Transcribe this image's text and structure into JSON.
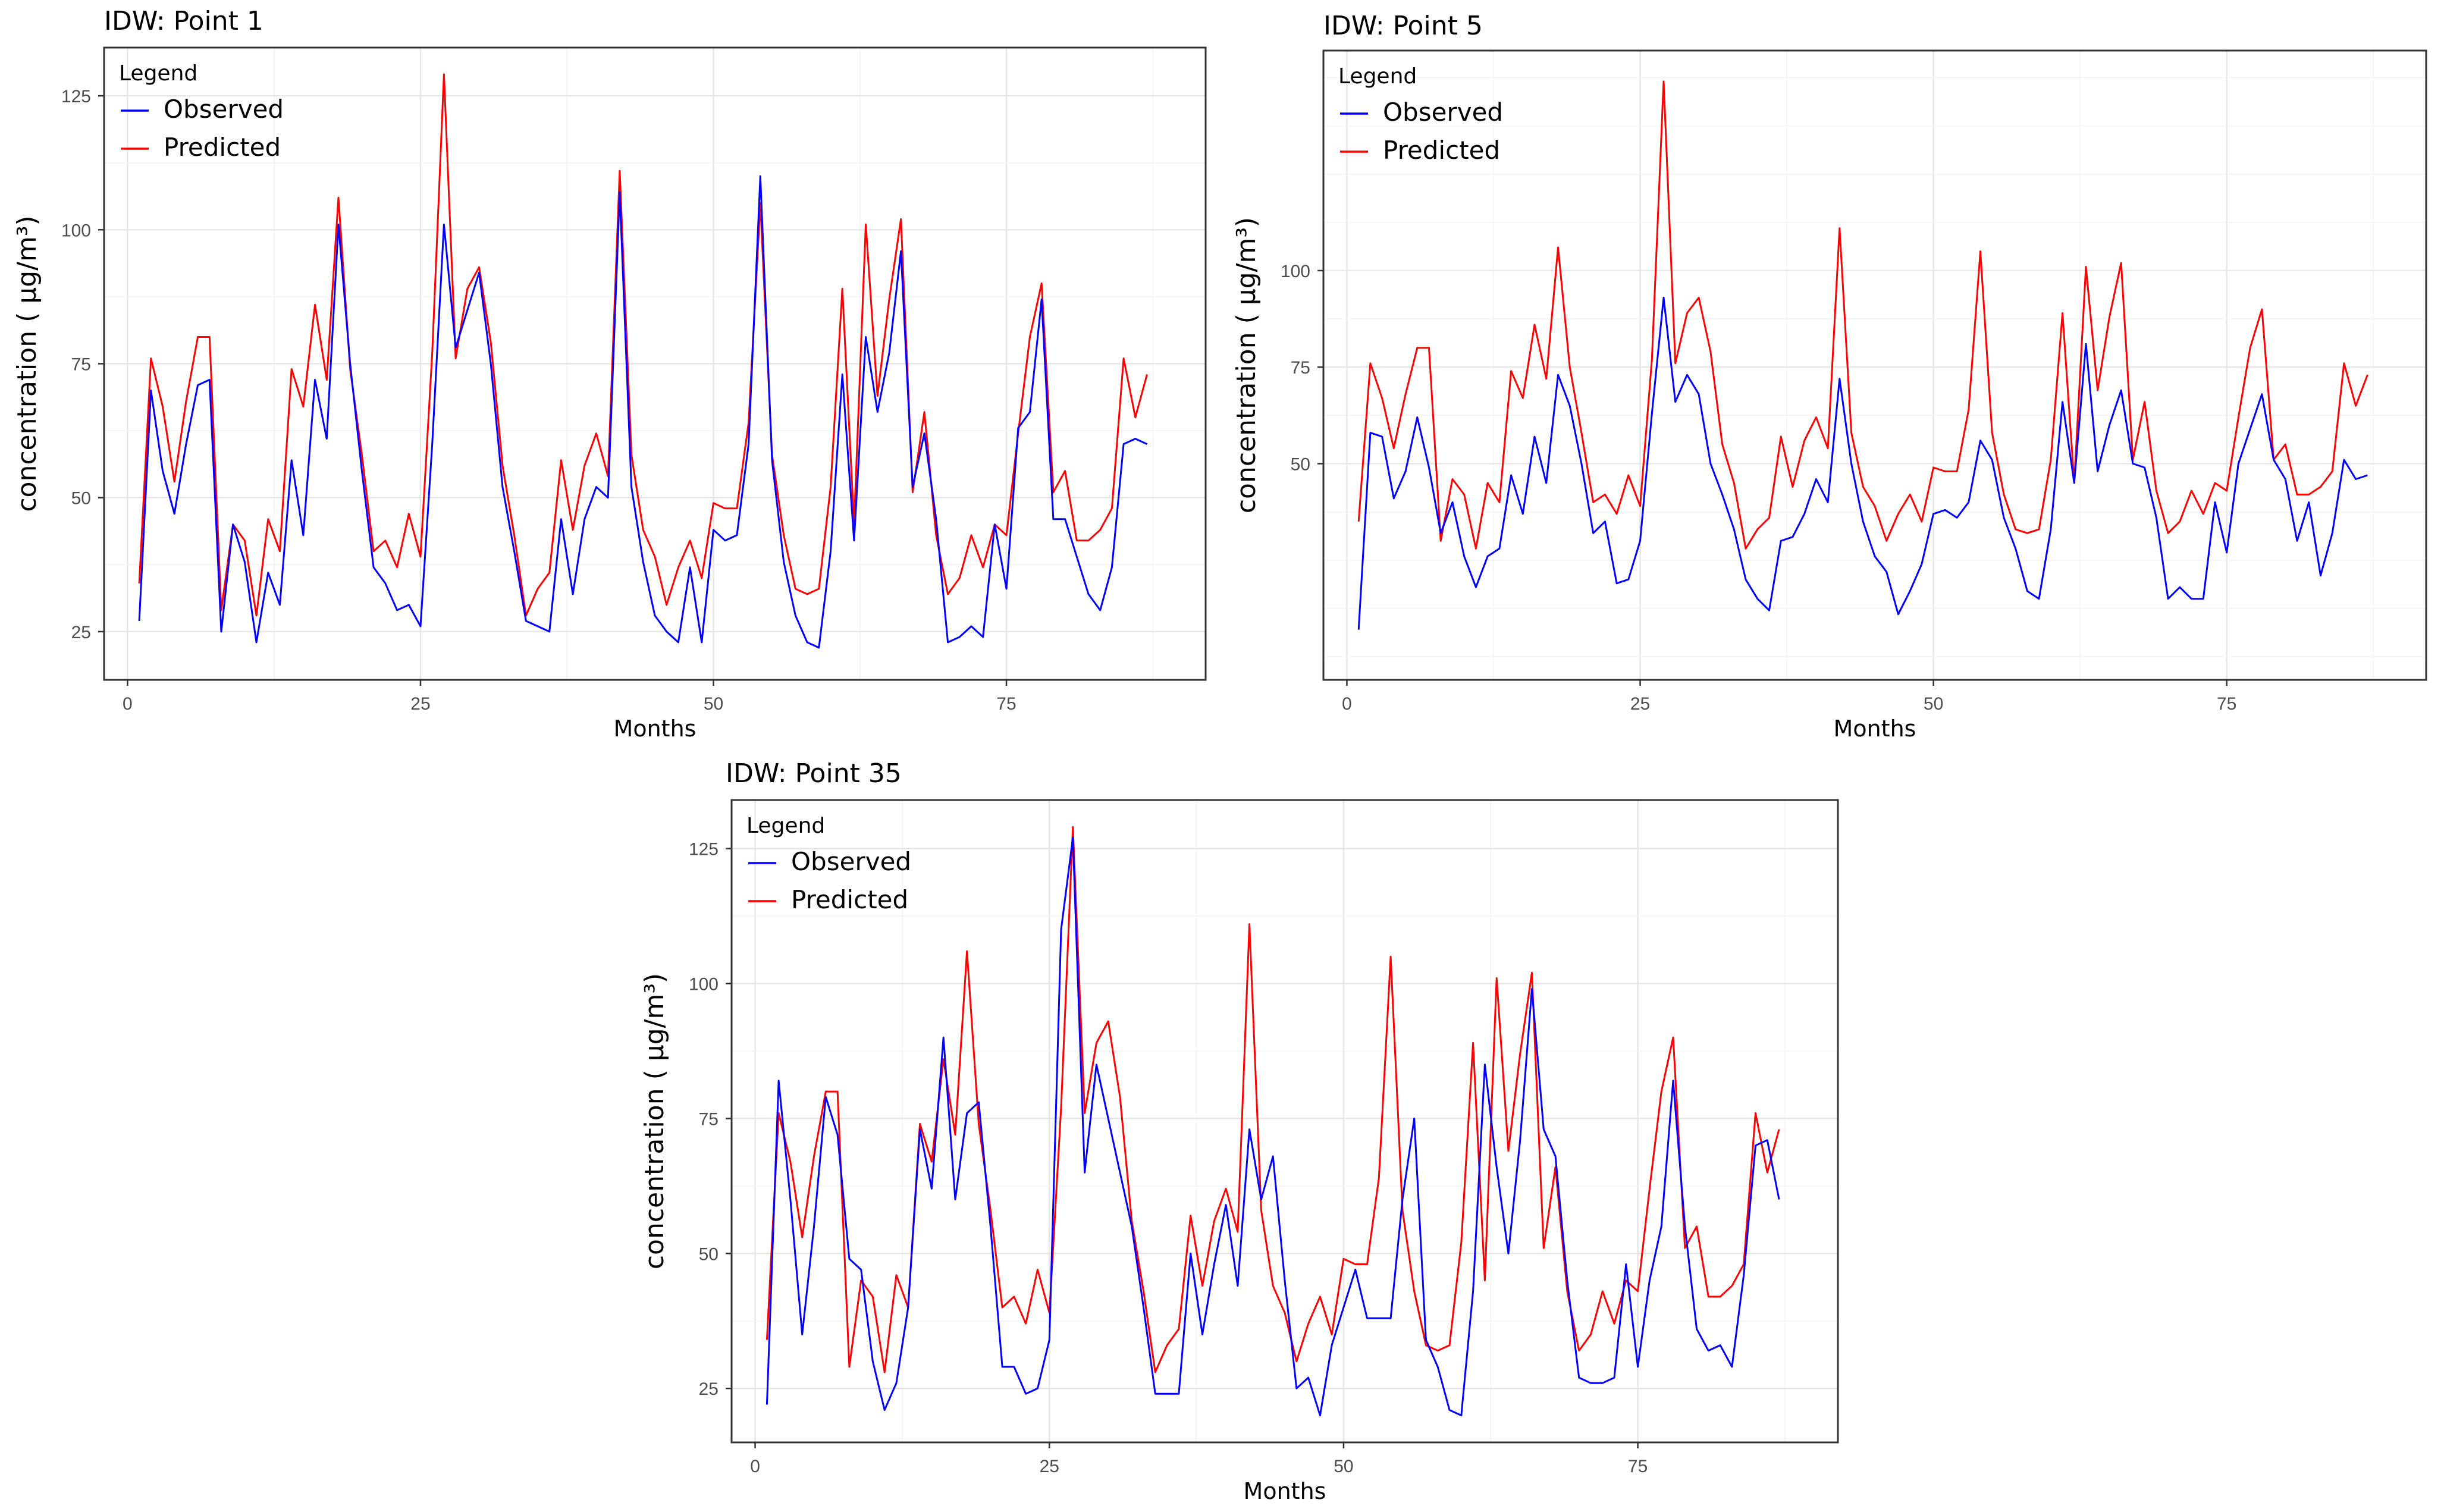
{
  "chart_data": [
    {
      "type": "line",
      "title": "IDW: Point 1",
      "xlabel": "Months",
      "ylabel": "concentration ( µg/m³)",
      "xlim": [
        -2,
        92
      ],
      "ylim": [
        16,
        134
      ],
      "xticks": [
        0,
        25,
        50,
        75
      ],
      "yticks": [
        25,
        50,
        75,
        100,
        125
      ],
      "grid": true,
      "legend": {
        "title": "Legend",
        "position": "top-left"
      },
      "series": [
        {
          "name": "Observed",
          "color": "#0000ff",
          "x": [
            1,
            2,
            3,
            4,
            5,
            6,
            7,
            8,
            9,
            10,
            11,
            12,
            13,
            14,
            15,
            16,
            17,
            18,
            19,
            20,
            21,
            22,
            23,
            24,
            25,
            26,
            27,
            28,
            29,
            30,
            31,
            32,
            33,
            34,
            35,
            36,
            37,
            38,
            39,
            40,
            41,
            42,
            43,
            44,
            45,
            46,
            47,
            48,
            49,
            50,
            51,
            52,
            53,
            54,
            55,
            56,
            57,
            58,
            59,
            60,
            61,
            62,
            63,
            64,
            65,
            66,
            67,
            68,
            69,
            70,
            71,
            72,
            73,
            74,
            75,
            76,
            77,
            78,
            79,
            80,
            81,
            82,
            83,
            84,
            85,
            86,
            87,
            88
          ],
          "y": [
            27,
            70,
            55,
            47,
            60,
            71,
            72,
            25,
            45,
            38,
            23,
            36,
            30,
            57,
            43,
            72,
            61,
            101,
            75,
            55,
            37,
            34,
            29,
            30,
            26,
            60,
            101,
            78,
            85,
            92,
            75,
            52,
            40,
            27,
            26,
            25,
            46,
            32,
            46,
            52,
            50,
            107,
            52,
            38,
            28,
            25,
            23,
            37,
            23,
            44,
            42,
            43,
            60,
            110,
            57,
            38,
            28,
            23,
            22,
            40,
            73,
            42,
            80,
            66,
            77,
            96,
            52,
            62,
            46,
            23,
            24,
            26,
            24,
            45,
            33,
            63,
            66,
            87,
            46,
            46,
            39,
            32,
            29,
            37,
            60,
            61,
            60,
            null
          ]
        },
        {
          "name": "Predicted",
          "color": "#ff0000",
          "x": [
            1,
            2,
            3,
            4,
            5,
            6,
            7,
            8,
            9,
            10,
            11,
            12,
            13,
            14,
            15,
            16,
            17,
            18,
            19,
            20,
            21,
            22,
            23,
            24,
            25,
            26,
            27,
            28,
            29,
            30,
            31,
            32,
            33,
            34,
            35,
            36,
            37,
            38,
            39,
            40,
            41,
            42,
            43,
            44,
            45,
            46,
            47,
            48,
            49,
            50,
            51,
            52,
            53,
            54,
            55,
            56,
            57,
            58,
            59,
            60,
            61,
            62,
            63,
            64,
            65,
            66,
            67,
            68,
            69,
            70,
            71,
            72,
            73,
            74,
            75,
            76,
            77,
            78,
            79,
            80,
            81,
            82,
            83,
            84,
            85,
            86,
            87,
            88
          ],
          "y": [
            34,
            76,
            67,
            53,
            68,
            80,
            80,
            29,
            45,
            42,
            28,
            46,
            40,
            74,
            67,
            86,
            72,
            106,
            74,
            58,
            40,
            42,
            37,
            47,
            39,
            77,
            129,
            76,
            89,
            93,
            79,
            56,
            43,
            28,
            33,
            36,
            57,
            44,
            56,
            62,
            54,
            111,
            58,
            44,
            39,
            30,
            37,
            42,
            35,
            49,
            48,
            48,
            64,
            105,
            58,
            43,
            33,
            32,
            33,
            52,
            89,
            45,
            101,
            69,
            87,
            102,
            51,
            66,
            43,
            32,
            35,
            43,
            37,
            45,
            43,
            62,
            80,
            90,
            51,
            55,
            42,
            42,
            44,
            48,
            76,
            65,
            73,
            null
          ]
        }
      ]
    },
    {
      "type": "line",
      "title": "IDW: Point 5",
      "xlabel": "Months",
      "ylabel": "concentration ( µg/m³)",
      "xlim": [
        -2,
        92
      ],
      "ylim": [
        -6,
        157
      ],
      "xticks": [
        0,
        25,
        50,
        75
      ],
      "yticks": [
        50,
        75,
        100
      ],
      "grid": true,
      "legend": {
        "title": "Legend",
        "position": "top-left"
      },
      "series": [
        {
          "name": "Observed",
          "color": "#0000ff",
          "x": [
            1,
            2,
            3,
            4,
            5,
            6,
            7,
            8,
            9,
            10,
            11,
            12,
            13,
            14,
            15,
            16,
            17,
            18,
            19,
            20,
            21,
            22,
            23,
            24,
            25,
            26,
            27,
            28,
            29,
            30,
            31,
            32,
            33,
            34,
            35,
            36,
            37,
            38,
            39,
            40,
            41,
            42,
            43,
            44,
            45,
            46,
            47,
            48,
            49,
            50,
            51,
            52,
            53,
            54,
            55,
            56,
            57,
            58,
            59,
            60,
            61,
            62,
            63,
            64,
            65,
            66,
            67,
            68,
            69,
            70,
            71,
            72,
            73,
            74,
            75,
            76,
            77,
            78,
            79,
            80,
            81,
            82,
            83,
            84,
            85,
            86,
            87,
            88
          ],
          "y": [
            7,
            58,
            57,
            41,
            48,
            62,
            49,
            32,
            40,
            26,
            18,
            26,
            28,
            47,
            37,
            57,
            45,
            73,
            65,
            50,
            32,
            35,
            19,
            20,
            30,
            63,
            93,
            66,
            73,
            68,
            50,
            42,
            33,
            20,
            15,
            12,
            30,
            31,
            37,
            46,
            40,
            72,
            50,
            35,
            26,
            22,
            11,
            17,
            24,
            37,
            38,
            36,
            40,
            56,
            51,
            36,
            28,
            17,
            15,
            33,
            66,
            45,
            81,
            48,
            60,
            69,
            50,
            49,
            36,
            15,
            18,
            15,
            15,
            40,
            27,
            50,
            59,
            68,
            51,
            46,
            30,
            40,
            21,
            32,
            51,
            46,
            47,
            null
          ]
        },
        {
          "name": "Predicted",
          "color": "#ff0000",
          "x": [
            1,
            2,
            3,
            4,
            5,
            6,
            7,
            8,
            9,
            10,
            11,
            12,
            13,
            14,
            15,
            16,
            17,
            18,
            19,
            20,
            21,
            22,
            23,
            24,
            25,
            26,
            27,
            28,
            29,
            30,
            31,
            32,
            33,
            34,
            35,
            36,
            37,
            38,
            39,
            40,
            41,
            42,
            43,
            44,
            45,
            46,
            47,
            48,
            49,
            50,
            51,
            52,
            53,
            54,
            55,
            56,
            57,
            58,
            59,
            60,
            61,
            62,
            63,
            64,
            65,
            66,
            67,
            68,
            69,
            70,
            71,
            72,
            73,
            74,
            75,
            76,
            77,
            78,
            79,
            80,
            81,
            82,
            83,
            84,
            85,
            86,
            87,
            88
          ],
          "y": [
            35,
            76,
            67,
            54,
            68,
            80,
            80,
            30,
            46,
            42,
            28,
            45,
            40,
            74,
            67,
            86,
            72,
            106,
            75,
            58,
            40,
            42,
            37,
            47,
            39,
            77,
            149,
            76,
            89,
            93,
            79,
            55,
            45,
            28,
            33,
            36,
            57,
            44,
            56,
            62,
            54,
            111,
            58,
            44,
            39,
            30,
            37,
            42,
            35,
            49,
            48,
            48,
            64,
            105,
            58,
            42,
            33,
            32,
            33,
            51,
            89,
            45,
            101,
            69,
            88,
            102,
            51,
            66,
            43,
            32,
            35,
            43,
            37,
            45,
            43,
            62,
            80,
            90,
            51,
            55,
            42,
            42,
            44,
            48,
            76,
            65,
            73,
            null
          ]
        }
      ]
    },
    {
      "type": "line",
      "title": "IDW: Point 35",
      "xlabel": "Months",
      "ylabel": "concentration ( µg/m³)",
      "xlim": [
        -2,
        92
      ],
      "ylim": [
        15,
        134
      ],
      "xticks": [
        0,
        25,
        50,
        75
      ],
      "yticks": [
        25,
        50,
        75,
        100,
        125
      ],
      "grid": true,
      "legend": {
        "title": "Legend",
        "position": "top-left"
      },
      "series": [
        {
          "name": "Observed",
          "color": "#0000ff",
          "x": [
            1,
            2,
            3,
            4,
            5,
            6,
            7,
            8,
            9,
            10,
            11,
            12,
            13,
            14,
            15,
            16,
            17,
            18,
            19,
            20,
            21,
            22,
            23,
            24,
            25,
            26,
            27,
            28,
            29,
            30,
            31,
            32,
            33,
            34,
            35,
            36,
            37,
            38,
            39,
            40,
            41,
            42,
            43,
            44,
            45,
            46,
            47,
            48,
            49,
            50,
            51,
            52,
            53,
            54,
            55,
            56,
            57,
            58,
            59,
            60,
            61,
            62,
            63,
            64,
            65,
            66,
            67,
            68,
            69,
            70,
            71,
            72,
            73,
            74,
            75,
            76,
            77,
            78,
            79,
            80,
            81,
            82,
            83,
            84,
            85,
            86,
            87,
            88
          ],
          "y": [
            22,
            82,
            60,
            35,
            55,
            79,
            72,
            49,
            47,
            30,
            21,
            26,
            40,
            73,
            62,
            90,
            60,
            76,
            78,
            55,
            29,
            29,
            24,
            25,
            34,
            110,
            127,
            65,
            85,
            75,
            65,
            55,
            40,
            24,
            24,
            24,
            50,
            35,
            48,
            59,
            44,
            73,
            60,
            68,
            45,
            25,
            27,
            20,
            33,
            40,
            47,
            38,
            38,
            38,
            60,
            75,
            34,
            29,
            21,
            20,
            43,
            85,
            66,
            50,
            71,
            99,
            73,
            68,
            45,
            27,
            26,
            26,
            27,
            48,
            29,
            45,
            55,
            82,
            55,
            36,
            32,
            33,
            29,
            46,
            70,
            71,
            60,
            null
          ]
        },
        {
          "name": "Predicted",
          "color": "#ff0000",
          "x": [
            1,
            2,
            3,
            4,
            5,
            6,
            7,
            8,
            9,
            10,
            11,
            12,
            13,
            14,
            15,
            16,
            17,
            18,
            19,
            20,
            21,
            22,
            23,
            24,
            25,
            26,
            27,
            28,
            29,
            30,
            31,
            32,
            33,
            34,
            35,
            36,
            37,
            38,
            39,
            40,
            41,
            42,
            43,
            44,
            45,
            46,
            47,
            48,
            49,
            50,
            51,
            52,
            53,
            54,
            55,
            56,
            57,
            58,
            59,
            60,
            61,
            62,
            63,
            64,
            65,
            66,
            67,
            68,
            69,
            70,
            71,
            72,
            73,
            74,
            75,
            76,
            77,
            78,
            79,
            80,
            81,
            82,
            83,
            84,
            85,
            86,
            87,
            88
          ],
          "y": [
            34,
            76,
            67,
            53,
            68,
            80,
            80,
            29,
            45,
            42,
            28,
            46,
            40,
            74,
            67,
            86,
            72,
            106,
            74,
            58,
            40,
            42,
            37,
            47,
            39,
            77,
            129,
            76,
            89,
            93,
            79,
            56,
            43,
            28,
            33,
            36,
            57,
            44,
            56,
            62,
            54,
            111,
            58,
            44,
            39,
            30,
            37,
            42,
            35,
            49,
            48,
            48,
            64,
            105,
            58,
            43,
            33,
            32,
            33,
            52,
            89,
            45,
            101,
            69,
            87,
            102,
            51,
            66,
            43,
            32,
            35,
            43,
            37,
            45,
            43,
            62,
            80,
            90,
            51,
            55,
            42,
            42,
            44,
            48,
            76,
            65,
            73,
            null
          ]
        }
      ]
    }
  ]
}
